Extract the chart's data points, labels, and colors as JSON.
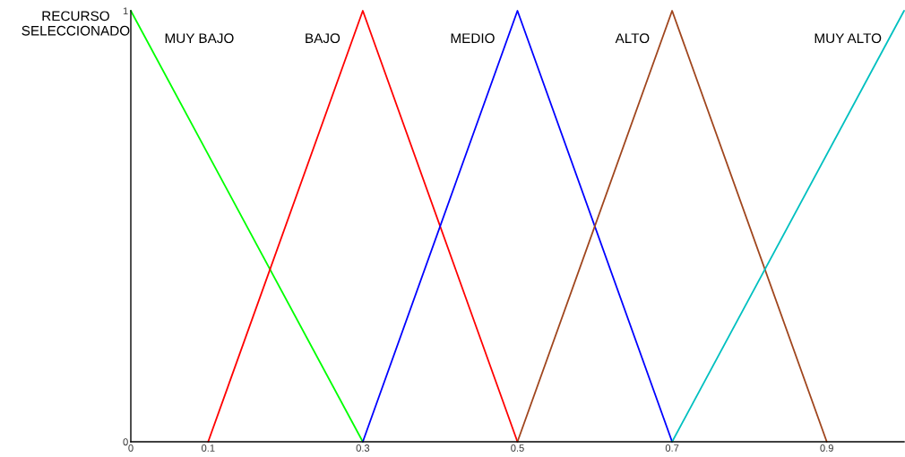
{
  "chart_data": {
    "type": "line",
    "ylabel": "RECURSO\nSELECCIONADO",
    "xlim": [
      0,
      1
    ],
    "ylim": [
      0,
      1
    ],
    "xticks": [
      0,
      0.1,
      0.3,
      0.5,
      0.7,
      0.9
    ],
    "yticks": [
      0,
      1
    ],
    "grid": false,
    "legend": false,
    "line_style": "solid",
    "series": [
      {
        "name": "MUY BAJO",
        "color": "#00ff00",
        "x": [
          0,
          0.3
        ],
        "values": [
          1,
          0
        ]
      },
      {
        "name": "BAJO",
        "color": "#ff0000",
        "x": [
          0.1,
          0.3,
          0.5
        ],
        "values": [
          0,
          1,
          0
        ]
      },
      {
        "name": "MEDIO",
        "color": "#0000ff",
        "x": [
          0.3,
          0.5,
          0.7
        ],
        "values": [
          0,
          1,
          0
        ]
      },
      {
        "name": "ALTO",
        "color": "#a0461e",
        "x": [
          0.5,
          0.7,
          0.9
        ],
        "values": [
          0,
          1,
          0
        ]
      },
      {
        "name": "MUY ALTO",
        "color": "#00c0c0",
        "x": [
          0.7,
          1.0
        ],
        "values": [
          0,
          1
        ]
      }
    ]
  }
}
